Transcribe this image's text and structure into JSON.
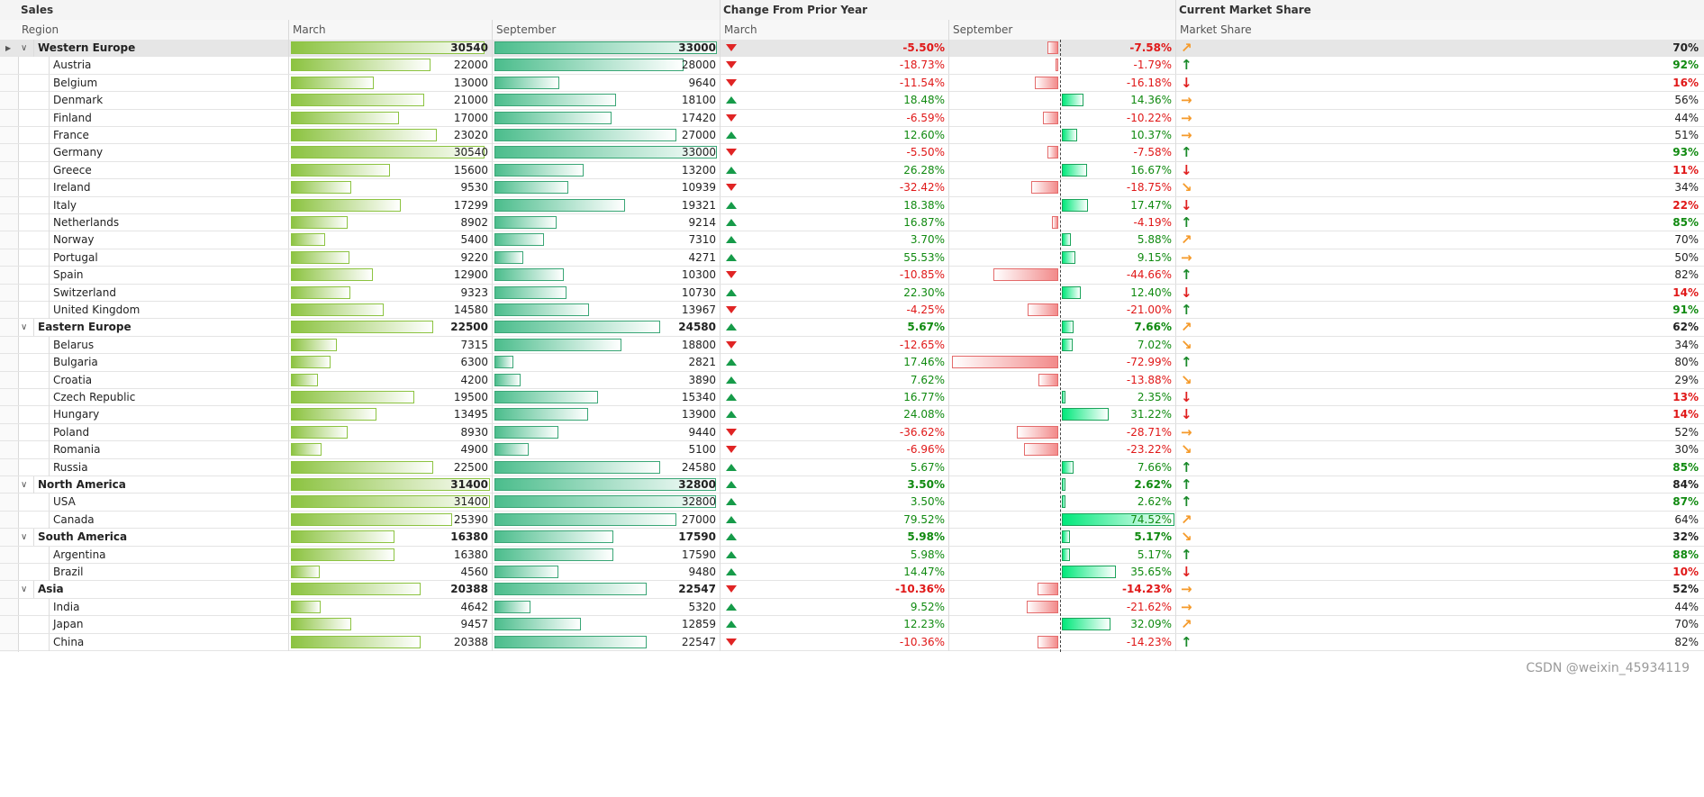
{
  "band": {
    "sales": "Sales",
    "change": "Change From Prior Year",
    "share": "Current Market Share"
  },
  "headers": {
    "region": "Region",
    "march": "March",
    "september": "September",
    "change_march": "March",
    "change_september": "September",
    "market_share": "Market Share"
  },
  "colors": {
    "positive": "#108a10",
    "negative": "#e01818",
    "march_bar": "#8cc341",
    "sept_bar": "#4bbd8c",
    "neg_bar": "#f28a8a",
    "pos_bar": "#00e87a",
    "arrow_orange": "#f59a2a"
  },
  "rows": [
    {
      "region": "Western Europe",
      "group": true,
      "selected": true,
      "march": "30540",
      "march_val": 30540,
      "sep": "33000",
      "sep_val": 33000,
      "chg_march": "-5.50%",
      "chg_march_pos": false,
      "chg_sep": "-7.58%",
      "chg_sep_val": -7.58,
      "share": "70%",
      "trend": "up-right",
      "share_color": "black"
    },
    {
      "region": "Austria",
      "group": false,
      "march": "22000",
      "march_val": 22000,
      "sep": "28000",
      "sep_val": 28000,
      "chg_march": "-18.73%",
      "chg_march_pos": false,
      "chg_sep": "-1.79%",
      "chg_sep_val": -1.79,
      "share": "92%",
      "trend": "up",
      "share_color": "green"
    },
    {
      "region": "Belgium",
      "group": false,
      "march": "13000",
      "march_val": 13000,
      "sep": "9640",
      "sep_val": 9640,
      "chg_march": "-11.54%",
      "chg_march_pos": false,
      "chg_sep": "-16.18%",
      "chg_sep_val": -16.18,
      "share": "16%",
      "trend": "down",
      "share_color": "red"
    },
    {
      "region": "Denmark",
      "group": false,
      "march": "21000",
      "march_val": 21000,
      "sep": "18100",
      "sep_val": 18100,
      "chg_march": "18.48%",
      "chg_march_pos": true,
      "chg_sep": "14.36%",
      "chg_sep_val": 14.36,
      "share": "56%",
      "trend": "flat",
      "share_color": "black"
    },
    {
      "region": "Finland",
      "group": false,
      "march": "17000",
      "march_val": 17000,
      "sep": "17420",
      "sep_val": 17420,
      "chg_march": "-6.59%",
      "chg_march_pos": false,
      "chg_sep": "-10.22%",
      "chg_sep_val": -10.22,
      "share": "44%",
      "trend": "flat",
      "share_color": "black"
    },
    {
      "region": "France",
      "group": false,
      "march": "23020",
      "march_val": 23020,
      "sep": "27000",
      "sep_val": 27000,
      "chg_march": "12.60%",
      "chg_march_pos": true,
      "chg_sep": "10.37%",
      "chg_sep_val": 10.37,
      "share": "51%",
      "trend": "flat",
      "share_color": "black"
    },
    {
      "region": "Germany",
      "group": false,
      "march": "30540",
      "march_val": 30540,
      "sep": "33000",
      "sep_val": 33000,
      "chg_march": "-5.50%",
      "chg_march_pos": false,
      "chg_sep": "-7.58%",
      "chg_sep_val": -7.58,
      "share": "93%",
      "trend": "up",
      "share_color": "green"
    },
    {
      "region": "Greece",
      "group": false,
      "march": "15600",
      "march_val": 15600,
      "sep": "13200",
      "sep_val": 13200,
      "chg_march": "26.28%",
      "chg_march_pos": true,
      "chg_sep": "16.67%",
      "chg_sep_val": 16.67,
      "share": "11%",
      "trend": "down",
      "share_color": "red"
    },
    {
      "region": "Ireland",
      "group": false,
      "march": "9530",
      "march_val": 9530,
      "sep": "10939",
      "sep_val": 10939,
      "chg_march": "-32.42%",
      "chg_march_pos": false,
      "chg_sep": "-18.75%",
      "chg_sep_val": -18.75,
      "share": "34%",
      "trend": "down-right",
      "share_color": "black"
    },
    {
      "region": "Italy",
      "group": false,
      "march": "17299",
      "march_val": 17299,
      "sep": "19321",
      "sep_val": 19321,
      "chg_march": "18.38%",
      "chg_march_pos": true,
      "chg_sep": "17.47%",
      "chg_sep_val": 17.47,
      "share": "22%",
      "trend": "down",
      "share_color": "red"
    },
    {
      "region": "Netherlands",
      "group": false,
      "march": "8902",
      "march_val": 8902,
      "sep": "9214",
      "sep_val": 9214,
      "chg_march": "16.87%",
      "chg_march_pos": true,
      "chg_sep": "-4.19%",
      "chg_sep_val": -4.19,
      "share": "85%",
      "trend": "up",
      "share_color": "green"
    },
    {
      "region": "Norway",
      "group": false,
      "march": "5400",
      "march_val": 5400,
      "sep": "7310",
      "sep_val": 7310,
      "chg_march": "3.70%",
      "chg_march_pos": true,
      "chg_sep": "5.88%",
      "chg_sep_val": 5.88,
      "share": "70%",
      "trend": "up-right",
      "share_color": "black"
    },
    {
      "region": "Portugal",
      "group": false,
      "march": "9220",
      "march_val": 9220,
      "sep": "4271",
      "sep_val": 4271,
      "chg_march": "55.53%",
      "chg_march_pos": true,
      "chg_sep": "9.15%",
      "chg_sep_val": 9.15,
      "share": "50%",
      "trend": "flat",
      "share_color": "black"
    },
    {
      "region": "Spain",
      "group": false,
      "march": "12900",
      "march_val": 12900,
      "sep": "10300",
      "sep_val": 10300,
      "chg_march": "-10.85%",
      "chg_march_pos": false,
      "chg_sep": "-44.66%",
      "chg_sep_val": -44.66,
      "share": "82%",
      "trend": "up",
      "share_color": "black"
    },
    {
      "region": "Switzerland",
      "group": false,
      "march": "9323",
      "march_val": 9323,
      "sep": "10730",
      "sep_val": 10730,
      "chg_march": "22.30%",
      "chg_march_pos": true,
      "chg_sep": "12.40%",
      "chg_sep_val": 12.4,
      "share": "14%",
      "trend": "down",
      "share_color": "red"
    },
    {
      "region": "United Kingdom",
      "group": false,
      "march": "14580",
      "march_val": 14580,
      "sep": "13967",
      "sep_val": 13967,
      "chg_march": "-4.25%",
      "chg_march_pos": false,
      "chg_sep": "-21.00%",
      "chg_sep_val": -21.0,
      "share": "91%",
      "trend": "up",
      "share_color": "green"
    },
    {
      "region": "Eastern Europe",
      "group": true,
      "march": "22500",
      "march_val": 22500,
      "sep": "24580",
      "sep_val": 24580,
      "chg_march": "5.67%",
      "chg_march_pos": true,
      "chg_sep": "7.66%",
      "chg_sep_val": 7.66,
      "share": "62%",
      "trend": "up-right",
      "share_color": "black"
    },
    {
      "region": "Belarus",
      "group": false,
      "march": "7315",
      "march_val": 7315,
      "sep": "18800",
      "sep_val": 18800,
      "chg_march": "-12.65%",
      "chg_march_pos": false,
      "chg_sep": "7.02%",
      "chg_sep_val": 7.02,
      "share": "34%",
      "trend": "down-right",
      "share_color": "black"
    },
    {
      "region": "Bulgaria",
      "group": false,
      "march": "6300",
      "march_val": 6300,
      "sep": "2821",
      "sep_val": 2821,
      "chg_march": "17.46%",
      "chg_march_pos": true,
      "chg_sep": "-72.99%",
      "chg_sep_val": -72.99,
      "share": "80%",
      "trend": "up",
      "share_color": "black"
    },
    {
      "region": "Croatia",
      "group": false,
      "march": "4200",
      "march_val": 4200,
      "sep": "3890",
      "sep_val": 3890,
      "chg_march": "7.62%",
      "chg_march_pos": true,
      "chg_sep": "-13.88%",
      "chg_sep_val": -13.88,
      "share": "29%",
      "trend": "down-right",
      "share_color": "black"
    },
    {
      "region": "Czech Republic",
      "group": false,
      "march": "19500",
      "march_val": 19500,
      "sep": "15340",
      "sep_val": 15340,
      "chg_march": "16.77%",
      "chg_march_pos": true,
      "chg_sep": "2.35%",
      "chg_sep_val": 2.35,
      "share": "13%",
      "trend": "down",
      "share_color": "red"
    },
    {
      "region": "Hungary",
      "group": false,
      "march": "13495",
      "march_val": 13495,
      "sep": "13900",
      "sep_val": 13900,
      "chg_march": "24.08%",
      "chg_march_pos": true,
      "chg_sep": "31.22%",
      "chg_sep_val": 31.22,
      "share": "14%",
      "trend": "down",
      "share_color": "red"
    },
    {
      "region": "Poland",
      "group": false,
      "march": "8930",
      "march_val": 8930,
      "sep": "9440",
      "sep_val": 9440,
      "chg_march": "-36.62%",
      "chg_march_pos": false,
      "chg_sep": "-28.71%",
      "chg_sep_val": -28.71,
      "share": "52%",
      "trend": "flat",
      "share_color": "black"
    },
    {
      "region": "Romania",
      "group": false,
      "march": "4900",
      "march_val": 4900,
      "sep": "5100",
      "sep_val": 5100,
      "chg_march": "-6.96%",
      "chg_march_pos": false,
      "chg_sep": "-23.22%",
      "chg_sep_val": -23.22,
      "share": "30%",
      "trend": "down-right",
      "share_color": "black"
    },
    {
      "region": "Russia",
      "group": false,
      "march": "22500",
      "march_val": 22500,
      "sep": "24580",
      "sep_val": 24580,
      "chg_march": "5.67%",
      "chg_march_pos": true,
      "chg_sep": "7.66%",
      "chg_sep_val": 7.66,
      "share": "85%",
      "trend": "up",
      "share_color": "green"
    },
    {
      "region": "North America",
      "group": true,
      "march": "31400",
      "march_val": 31400,
      "sep": "32800",
      "sep_val": 32800,
      "chg_march": "3.50%",
      "chg_march_pos": true,
      "chg_sep": "2.62%",
      "chg_sep_val": 2.62,
      "share": "84%",
      "trend": "up",
      "share_color": "black"
    },
    {
      "region": "USA",
      "group": false,
      "march": "31400",
      "march_val": 31400,
      "sep": "32800",
      "sep_val": 32800,
      "chg_march": "3.50%",
      "chg_march_pos": true,
      "chg_sep": "2.62%",
      "chg_sep_val": 2.62,
      "share": "87%",
      "trend": "up",
      "share_color": "green"
    },
    {
      "region": "Canada",
      "group": false,
      "march": "25390",
      "march_val": 25390,
      "sep": "27000",
      "sep_val": 27000,
      "chg_march": "79.52%",
      "chg_march_pos": true,
      "chg_sep": "74.52%",
      "chg_sep_val": 74.52,
      "share": "64%",
      "trend": "up-right",
      "share_color": "black"
    },
    {
      "region": "South America",
      "group": true,
      "march": "16380",
      "march_val": 16380,
      "sep": "17590",
      "sep_val": 17590,
      "chg_march": "5.98%",
      "chg_march_pos": true,
      "chg_sep": "5.17%",
      "chg_sep_val": 5.17,
      "share": "32%",
      "trend": "down-right",
      "share_color": "black"
    },
    {
      "region": "Argentina",
      "group": false,
      "march": "16380",
      "march_val": 16380,
      "sep": "17590",
      "sep_val": 17590,
      "chg_march": "5.98%",
      "chg_march_pos": true,
      "chg_sep": "5.17%",
      "chg_sep_val": 5.17,
      "share": "88%",
      "trend": "up",
      "share_color": "green"
    },
    {
      "region": "Brazil",
      "group": false,
      "march": "4560",
      "march_val": 4560,
      "sep": "9480",
      "sep_val": 9480,
      "chg_march": "14.47%",
      "chg_march_pos": true,
      "chg_sep": "35.65%",
      "chg_sep_val": 35.65,
      "share": "10%",
      "trend": "down",
      "share_color": "red"
    },
    {
      "region": "Asia",
      "group": true,
      "march": "20388",
      "march_val": 20388,
      "sep": "22547",
      "sep_val": 22547,
      "chg_march": "-10.36%",
      "chg_march_pos": false,
      "chg_sep": "-14.23%",
      "chg_sep_val": -14.23,
      "share": "52%",
      "trend": "flat",
      "share_color": "black"
    },
    {
      "region": "India",
      "group": false,
      "march": "4642",
      "march_val": 4642,
      "sep": "5320",
      "sep_val": 5320,
      "chg_march": "9.52%",
      "chg_march_pos": true,
      "chg_sep": "-21.62%",
      "chg_sep_val": -21.62,
      "share": "44%",
      "trend": "flat",
      "share_color": "black"
    },
    {
      "region": "Japan",
      "group": false,
      "march": "9457",
      "march_val": 9457,
      "sep": "12859",
      "sep_val": 12859,
      "chg_march": "12.23%",
      "chg_march_pos": true,
      "chg_sep": "32.09%",
      "chg_sep_val": 32.09,
      "share": "70%",
      "trend": "up-right",
      "share_color": "black"
    },
    {
      "region": "China",
      "group": false,
      "march": "20388",
      "march_val": 20388,
      "sep": "22547",
      "sep_val": 22547,
      "chg_march": "-10.36%",
      "chg_march_pos": false,
      "chg_sep": "-14.23%",
      "chg_sep_val": -14.23,
      "share": "82%",
      "trend": "up",
      "share_color": "black"
    }
  ],
  "icons": {
    "expand": "chevron-down-icon",
    "row_indicator": "triangle-right-icon",
    "increase": "triangle-up-icon",
    "decrease": "triangle-down-icon"
  },
  "watermark": "CSDN @weixin_45934119"
}
